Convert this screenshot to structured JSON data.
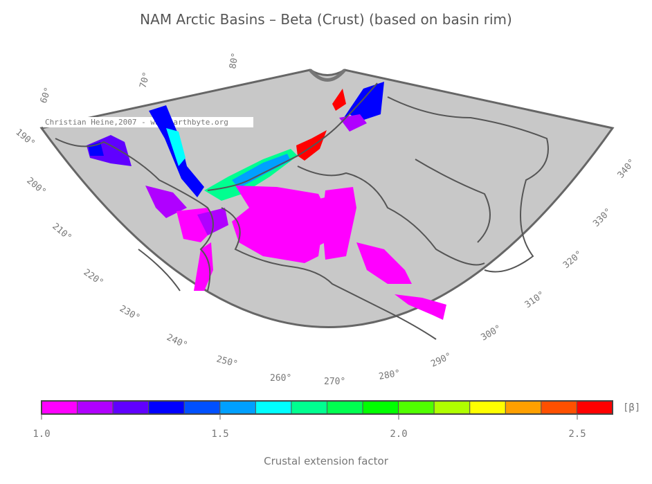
{
  "title": "NAM Arctic Basins – Beta (Crust) (based on basin rim)",
  "credit": "Christian Heine,2007 - www.earthbyte.org",
  "graticule_labels": [
    "60°",
    "70°",
    "80°",
    "190°",
    "200°",
    "210°",
    "220°",
    "230°",
    "240°",
    "250°",
    "260°",
    "270°",
    "280°",
    "290°",
    "300°",
    "310°",
    "320°",
    "330°",
    "340°"
  ],
  "colorbar": {
    "title": "Crustal extension factor",
    "unit": "[β]",
    "min": 1.0,
    "max": 2.6,
    "tick_labels": [
      "1.0",
      "1.5",
      "2.0",
      "2.5"
    ],
    "colors": [
      "#ff00ff",
      "#b000ff",
      "#6000ff",
      "#0000ff",
      "#0050ff",
      "#00a0ff",
      "#00ffff",
      "#00ff90",
      "#00ff50",
      "#00ff00",
      "#50ff00",
      "#b0ff00",
      "#ffff00",
      "#ffa000",
      "#ff5000",
      "#ff0000"
    ]
  },
  "colors": {
    "land": "#c8c8c8",
    "coast": "#555555",
    "frame": "#666666"
  }
}
